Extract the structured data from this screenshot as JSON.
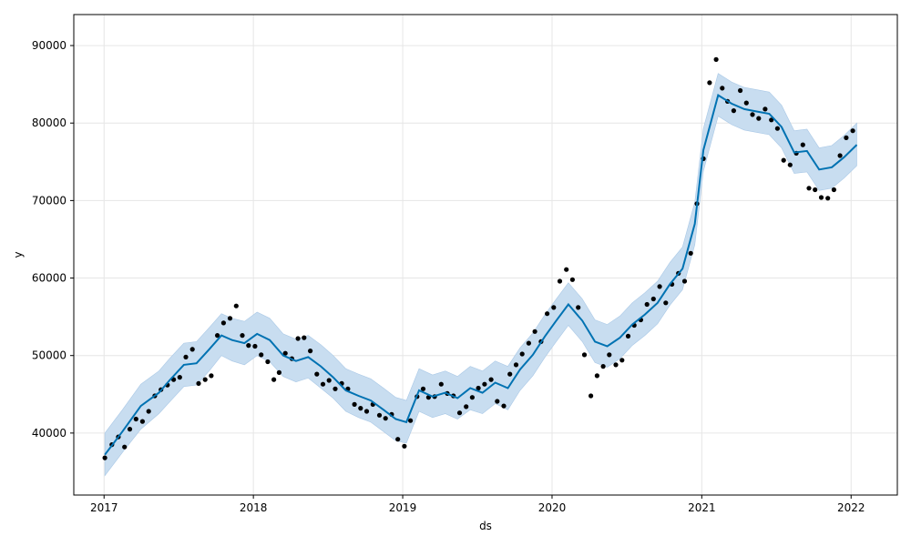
{
  "chart_data": {
    "type": "scatter",
    "xlabel": "ds",
    "ylabel": "y",
    "x_range": [
      "2016-10-19",
      "2022-04-24"
    ],
    "ylim": [
      32000,
      94000
    ],
    "x_ticks": [
      "2017",
      "2018",
      "2019",
      "2020",
      "2021",
      "2022"
    ],
    "y_ticks": [
      "40000",
      "50000",
      "60000",
      "70000",
      "80000",
      "90000"
    ],
    "grid": true,
    "colors": {
      "forecast_line": "#0072b2",
      "uncertainty_band": "#c8ddf0",
      "observations": "#000000",
      "grid": "#e6e6e6"
    },
    "forecast": {
      "x": [
        "2017-01-03",
        "2017-02-15",
        "2017-04-01",
        "2017-05-15",
        "2017-06-10",
        "2017-07-15",
        "2017-08-15",
        "2017-09-15",
        "2017-10-15",
        "2017-11-10",
        "2017-12-10",
        "2018-01-10",
        "2018-02-10",
        "2018-03-15",
        "2018-04-15",
        "2018-05-15",
        "2018-06-15",
        "2018-07-15",
        "2018-08-15",
        "2018-09-15",
        "2018-10-15",
        "2018-11-15",
        "2018-12-15",
        "2019-01-10",
        "2019-02-10",
        "2019-03-15",
        "2019-04-15",
        "2019-05-15",
        "2019-06-15",
        "2019-07-15",
        "2019-08-15",
        "2019-09-15",
        "2019-10-15",
        "2019-11-15",
        "2019-12-15",
        "2020-01-10",
        "2020-02-10",
        "2020-03-15",
        "2020-04-15",
        "2020-05-15",
        "2020-06-15",
        "2020-07-15",
        "2020-08-15",
        "2020-09-15",
        "2020-10-15",
        "2020-11-15",
        "2020-12-15",
        "2021-01-05",
        "2021-02-10",
        "2021-03-15",
        "2021-04-15",
        "2021-05-15",
        "2021-06-15",
        "2021-07-15",
        "2021-08-15",
        "2021-09-15",
        "2021-10-15",
        "2021-11-15",
        "2021-12-15",
        "2022-01-15"
      ],
      "yhat": [
        37200,
        40200,
        43500,
        45200,
        46800,
        48800,
        49000,
        50800,
        52600,
        52000,
        51600,
        52800,
        52000,
        50000,
        49300,
        49800,
        48600,
        47200,
        45500,
        44800,
        44200,
        43000,
        41800,
        41400,
        45500,
        44700,
        45200,
        44500,
        45800,
        45200,
        46500,
        45800,
        48200,
        50100,
        52500,
        54400,
        56600,
        54500,
        51800,
        51200,
        52300,
        54000,
        55300,
        56800,
        59200,
        61200,
        67000,
        76500,
        83600,
        82500,
        81800,
        81500,
        81200,
        79500,
        76200,
        76400,
        74000,
        74300,
        75600,
        77200
      ],
      "lower": [
        34500,
        37500,
        40500,
        42500,
        44000,
        46000,
        46200,
        48000,
        50000,
        49300,
        48800,
        50000,
        49200,
        47300,
        46600,
        47100,
        45800,
        44500,
        42800,
        42000,
        41400,
        40200,
        39000,
        38700,
        42800,
        42000,
        42500,
        41800,
        43000,
        42500,
        43800,
        43000,
        45500,
        47400,
        49800,
        51700,
        53900,
        51800,
        49100,
        48500,
        49600,
        51300,
        52600,
        54100,
        56500,
        58500,
        64300,
        73800,
        80900,
        79800,
        79100,
        78800,
        78500,
        76800,
        73500,
        73700,
        71300,
        71600,
        72900,
        74500
      ],
      "upper": [
        40000,
        43000,
        46300,
        48000,
        49600,
        51600,
        51800,
        53600,
        55400,
        54800,
        54400,
        55600,
        54800,
        52800,
        52100,
        52600,
        51400,
        50000,
        48300,
        47600,
        47000,
        45800,
        44600,
        44200,
        48300,
        47500,
        48000,
        47300,
        48600,
        48000,
        49300,
        48600,
        51000,
        52900,
        55300,
        57200,
        59400,
        57300,
        54600,
        54000,
        55100,
        56800,
        58100,
        59600,
        62000,
        64000,
        69800,
        79300,
        86400,
        85300,
        84600,
        84300,
        84000,
        82300,
        79000,
        79200,
        76800,
        77100,
        78400,
        80000
      ]
    },
    "observations": {
      "x": [
        "2017-01-03",
        "2017-01-20",
        "2017-02-05",
        "2017-02-20",
        "2017-03-05",
        "2017-03-20",
        "2017-04-05",
        "2017-04-20",
        "2017-05-05",
        "2017-05-20",
        "2017-06-05",
        "2017-06-20",
        "2017-07-05",
        "2017-07-20",
        "2017-08-05",
        "2017-08-20",
        "2017-09-05",
        "2017-09-20",
        "2017-10-05",
        "2017-10-20",
        "2017-11-05",
        "2017-11-20",
        "2017-12-05",
        "2017-12-20",
        "2018-01-05",
        "2018-01-20",
        "2018-02-05",
        "2018-02-20",
        "2018-03-05",
        "2018-03-20",
        "2018-04-05",
        "2018-04-20",
        "2018-05-05",
        "2018-05-20",
        "2018-06-05",
        "2018-06-20",
        "2018-07-05",
        "2018-07-20",
        "2018-08-05",
        "2018-08-20",
        "2018-09-05",
        "2018-09-20",
        "2018-10-05",
        "2018-10-20",
        "2018-11-05",
        "2018-11-20",
        "2018-12-05",
        "2018-12-20",
        "2019-01-05",
        "2019-01-20",
        "2019-02-05",
        "2019-02-20",
        "2019-03-05",
        "2019-03-20",
        "2019-04-05",
        "2019-04-20",
        "2019-05-05",
        "2019-05-20",
        "2019-06-05",
        "2019-06-20",
        "2019-07-05",
        "2019-07-20",
        "2019-08-05",
        "2019-08-20",
        "2019-09-05",
        "2019-09-20",
        "2019-10-05",
        "2019-10-20",
        "2019-11-05",
        "2019-11-20",
        "2019-12-05",
        "2019-12-20",
        "2020-01-05",
        "2020-01-20",
        "2020-02-05",
        "2020-02-20",
        "2020-03-05",
        "2020-03-20",
        "2020-04-05",
        "2020-04-20",
        "2020-05-05",
        "2020-05-20",
        "2020-06-05",
        "2020-06-20",
        "2020-07-05",
        "2020-07-20",
        "2020-08-05",
        "2020-08-20",
        "2020-09-05",
        "2020-09-20",
        "2020-10-05",
        "2020-10-20",
        "2020-11-05",
        "2020-11-20",
        "2020-12-05",
        "2020-12-20",
        "2021-01-05",
        "2021-01-20",
        "2021-02-05",
        "2021-02-20",
        "2021-03-05",
        "2021-03-20",
        "2021-04-05",
        "2021-04-20",
        "2021-05-05",
        "2021-05-20",
        "2021-06-05",
        "2021-06-20",
        "2021-07-05",
        "2021-07-20",
        "2021-08-05",
        "2021-08-20",
        "2021-09-05",
        "2021-09-20",
        "2021-10-05",
        "2021-10-20",
        "2021-11-05",
        "2021-11-20",
        "2021-12-05",
        "2021-12-20",
        "2022-01-05"
      ],
      "y": [
        36800,
        38500,
        39500,
        38200,
        40500,
        41800,
        41500,
        42800,
        44800,
        45600,
        46200,
        46900,
        47200,
        49800,
        50800,
        46400,
        46900,
        47400,
        52600,
        54200,
        54800,
        56400,
        52600,
        51300,
        51200,
        50100,
        49200,
        46900,
        47800,
        50300,
        49600,
        52200,
        52300,
        50600,
        47600,
        46300,
        46800,
        45700,
        46400,
        45700,
        43700,
        43200,
        42800,
        43700,
        42300,
        41900,
        42400,
        39200,
        38300,
        41600,
        44700,
        45700,
        44600,
        44700,
        46300,
        45100,
        44800,
        42600,
        43400,
        44600,
        45800,
        46300,
        46900,
        44100,
        43500,
        47600,
        48800,
        50200,
        51600,
        53100,
        51800,
        55400,
        56200,
        59600,
        61100,
        59800,
        56200,
        50100,
        44800,
        47400,
        48600,
        50100,
        48800,
        49400,
        52500,
        53900,
        54600,
        56600,
        57300,
        58900,
        56800,
        59200,
        60600,
        59600,
        63200,
        69600,
        75400,
        85200,
        88200,
        84500,
        82800,
        81600,
        84200,
        82600,
        81100,
        80600,
        81800,
        80400,
        79300,
        75200,
        74600,
        76100,
        77200,
        71600,
        71400,
        70400,
        70300,
        71400,
        75800,
        78100,
        79000
      ]
    }
  }
}
